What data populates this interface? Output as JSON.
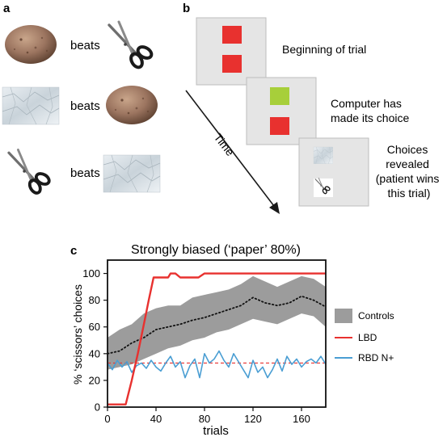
{
  "panels": {
    "a": {
      "label": "a",
      "rows": [
        {
          "left_icon": "rock-icon",
          "verb": "beats",
          "right_icon": "scissors-icon"
        },
        {
          "left_icon": "paper-icon",
          "verb": "beats",
          "right_icon": "rock-icon"
        },
        {
          "left_icon": "scissors-icon",
          "verb": "beats",
          "right_icon": "paper-icon"
        }
      ]
    },
    "b": {
      "label": "b",
      "time_label": "Time",
      "steps": [
        {
          "caption": "Beginning of trial",
          "top_color": "#e8312f",
          "bottom_color": "#e8312f"
        },
        {
          "caption_lines": [
            "Computer has",
            "made its choice"
          ],
          "top_color": "#a7cf3a",
          "bottom_color": "#e8312f"
        },
        {
          "caption_lines": [
            "Choices",
            "revealed",
            "(patient wins",
            "this trial)"
          ],
          "top_icon": "paper-icon",
          "bottom_icon": "scissors-icon"
        }
      ],
      "screen_color": "#e5e5e5"
    },
    "c": {
      "label": "c"
    }
  },
  "chart_data": {
    "type": "line",
    "title": "Strongly biased (‘paper’ 80%)",
    "xlabel": "trials",
    "ylabel": "% ‘scissors’ choices",
    "xlim": [
      0,
      180
    ],
    "ylim": [
      0,
      110
    ],
    "xticks": [
      0,
      40,
      80,
      120,
      160
    ],
    "yticks": [
      0,
      20,
      40,
      60,
      80,
      100
    ],
    "grid": false,
    "legend_position": "right",
    "reference_line": {
      "y": 33,
      "color": "#e8312f",
      "style": "dashed"
    },
    "series": [
      {
        "name": "Controls",
        "kind": "band",
        "color": "#9c9c9c",
        "x": [
          0,
          10,
          20,
          30,
          40,
          50,
          60,
          70,
          80,
          90,
          100,
          110,
          120,
          130,
          140,
          150,
          160,
          170,
          180
        ],
        "lower": [
          28,
          30,
          32,
          36,
          40,
          44,
          46,
          50,
          52,
          56,
          58,
          62,
          66,
          64,
          62,
          66,
          70,
          68,
          60
        ],
        "upper": [
          52,
          58,
          62,
          70,
          74,
          76,
          76,
          82,
          84,
          86,
          88,
          92,
          98,
          94,
          90,
          94,
          98,
          96,
          90
        ],
        "mean": [
          40,
          42,
          48,
          52,
          58,
          60,
          62,
          65,
          67,
          70,
          73,
          76,
          82,
          78,
          76,
          78,
          83,
          80,
          75
        ]
      },
      {
        "name": "LBD",
        "color": "#e8312f",
        "x": [
          0,
          8,
          15,
          20,
          25,
          30,
          34,
          38,
          50,
          52,
          56,
          60,
          75,
          80,
          100,
          120,
          140,
          160,
          180
        ],
        "values": [
          2,
          2,
          2,
          20,
          40,
          62,
          80,
          97,
          97,
          100,
          100,
          97,
          97,
          100,
          100,
          100,
          100,
          100,
          100
        ]
      },
      {
        "name": "RBD N+",
        "color": "#4a9ed3",
        "x": [
          0,
          4,
          8,
          12,
          16,
          20,
          24,
          28,
          32,
          36,
          40,
          44,
          48,
          52,
          56,
          60,
          64,
          68,
          72,
          76,
          80,
          84,
          88,
          92,
          96,
          100,
          104,
          108,
          112,
          116,
          120,
          124,
          128,
          132,
          136,
          140,
          144,
          148,
          152,
          156,
          160,
          164,
          168,
          172,
          176,
          180
        ],
        "values": [
          33,
          28,
          35,
          30,
          34,
          26,
          31,
          33,
          29,
          35,
          30,
          27,
          33,
          38,
          30,
          34,
          22,
          31,
          36,
          22,
          40,
          33,
          36,
          42,
          35,
          30,
          40,
          34,
          28,
          22,
          35,
          26,
          30,
          22,
          28,
          36,
          27,
          38,
          32,
          36,
          30,
          34,
          36,
          33,
          38,
          32
        ]
      }
    ]
  }
}
